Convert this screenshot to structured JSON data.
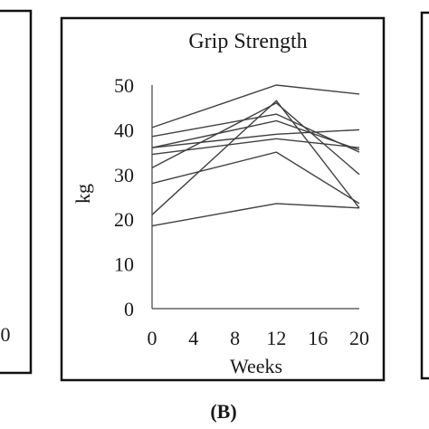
{
  "left_panel": {
    "tick_label_fragment": "0"
  },
  "chart_data": {
    "type": "line",
    "title": "Grip Strength",
    "xlabel": "Weeks",
    "ylabel": "kg",
    "x": [
      0,
      12,
      20
    ],
    "xticks": [
      "0",
      "4",
      "8",
      "12",
      "16",
      "20"
    ],
    "xlim": [
      0,
      20
    ],
    "yticks": [
      "0",
      "10",
      "20",
      "30",
      "40",
      "50"
    ],
    "ylim": [
      0,
      50
    ],
    "grid": false,
    "legend": "none",
    "line_color": "#404040",
    "series": [
      {
        "values": [
          40.5,
          50,
          48
        ]
      },
      {
        "values": [
          38.5,
          43.5,
          35
        ]
      },
      {
        "values": [
          36,
          39,
          40
        ]
      },
      {
        "values": [
          36,
          42,
          35.5
        ]
      },
      {
        "values": [
          34.5,
          38,
          36
        ]
      },
      {
        "values": [
          31.5,
          46,
          30
        ]
      },
      {
        "values": [
          28,
          35,
          23.5
        ]
      },
      {
        "values": [
          21,
          46.5,
          22.5
        ]
      },
      {
        "values": [
          18.5,
          23.5,
          22.5
        ]
      }
    ]
  },
  "caption": "(B)"
}
